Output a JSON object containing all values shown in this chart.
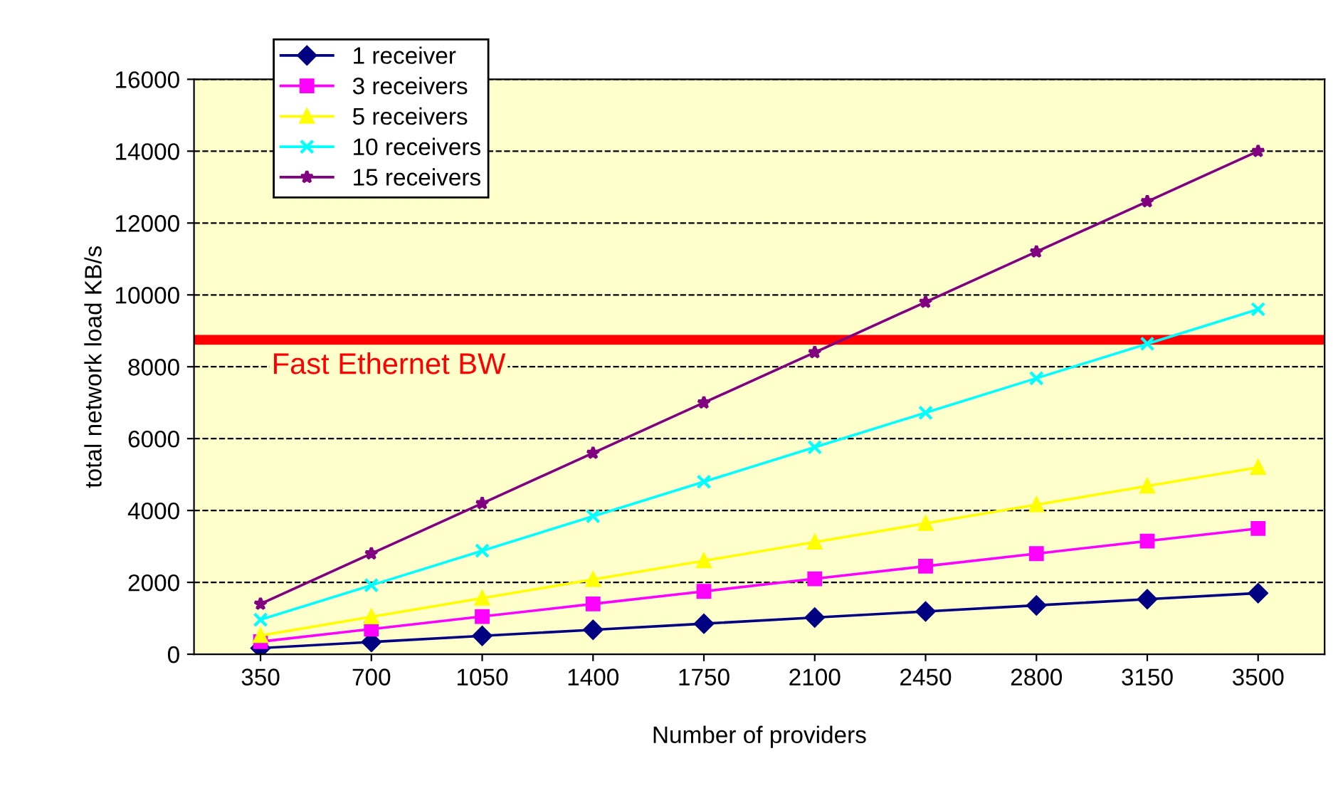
{
  "chart_data": {
    "type": "line",
    "xlabel": "Number of providers",
    "ylabel": "total network load KB/s",
    "categories": [
      "350",
      "700",
      "1050",
      "1400",
      "1750",
      "2100",
      "2450",
      "2800",
      "3150",
      "3500"
    ],
    "series": [
      {
        "name": "1 receiver",
        "color": "#000080",
        "marker": "diamond",
        "values": [
          170,
          340,
          510,
          680,
          850,
          1020,
          1190,
          1360,
          1530,
          1700
        ]
      },
      {
        "name": "3 receivers",
        "color": "#ff00ff",
        "marker": "square",
        "values": [
          350,
          700,
          1050,
          1400,
          1750,
          2100,
          2450,
          2800,
          3150,
          3500
        ]
      },
      {
        "name": "5 receivers",
        "color": "#ffff00",
        "marker": "triangle",
        "values": [
          520,
          1040,
          1560,
          2080,
          2600,
          3120,
          3640,
          4160,
          4680,
          5200
        ]
      },
      {
        "name": "10 receivers",
        "color": "#00ffff",
        "marker": "cross",
        "values": [
          960,
          1920,
          2880,
          3840,
          4800,
          5760,
          6720,
          7680,
          8640,
          9600
        ]
      },
      {
        "name": "15 receivers",
        "color": "#800080",
        "marker": "star",
        "values": [
          1400,
          2800,
          4200,
          5600,
          7000,
          8400,
          9800,
          11200,
          12600,
          14000
        ]
      }
    ],
    "ylim": [
      0,
      16000
    ],
    "yticks": [
      0,
      2000,
      4000,
      6000,
      8000,
      10000,
      12000,
      14000,
      16000
    ],
    "ref_lines": [
      {
        "axis": "y",
        "value": 8750,
        "label": "Fast Ethernet BW",
        "color": "#ff0000"
      }
    ],
    "grid": "y",
    "legend": "top left",
    "line_style": "solid"
  }
}
